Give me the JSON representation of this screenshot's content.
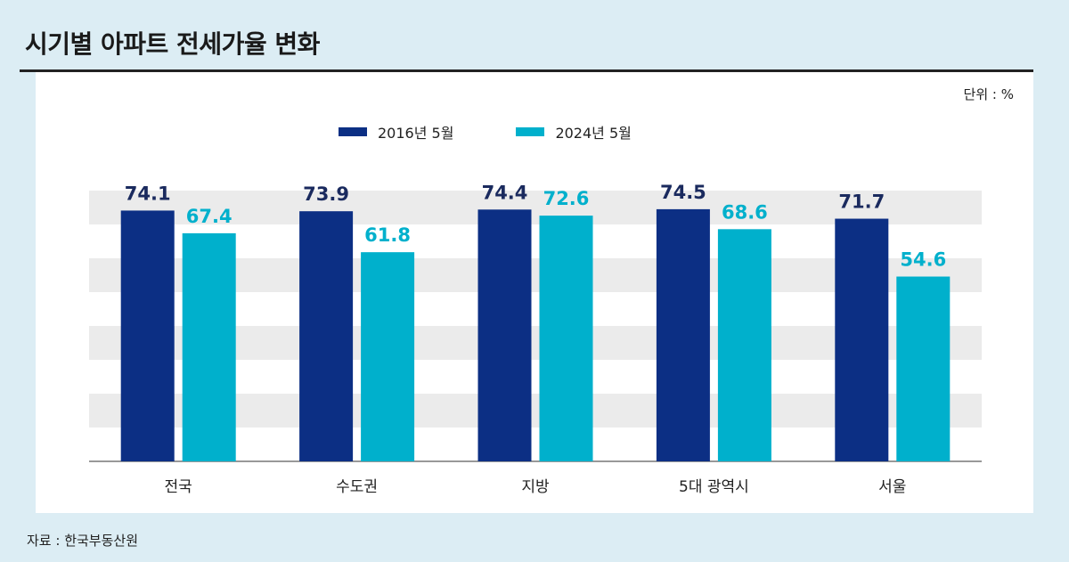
{
  "title": "시기별 아파트 전세가율 변화",
  "unit_label": "단위 : %",
  "source": "자료 : 한국부동산원",
  "colors": {
    "series1": "#0c2f84",
    "series2": "#00b0cc",
    "band": "#ebebeb"
  },
  "chart_data": {
    "type": "bar",
    "categories": [
      "전국",
      "수도권",
      "지방",
      "5대 광역시",
      "서울"
    ],
    "series": [
      {
        "name": "2016년 5월",
        "values": [
          74.1,
          73.9,
          74.4,
          74.5,
          71.7
        ]
      },
      {
        "name": "2024년 5월",
        "values": [
          67.4,
          61.8,
          72.6,
          68.6,
          54.6
        ]
      }
    ],
    "ylim": [
      0,
      80
    ],
    "grid": "horizontal bands",
    "legend": "top-center"
  }
}
